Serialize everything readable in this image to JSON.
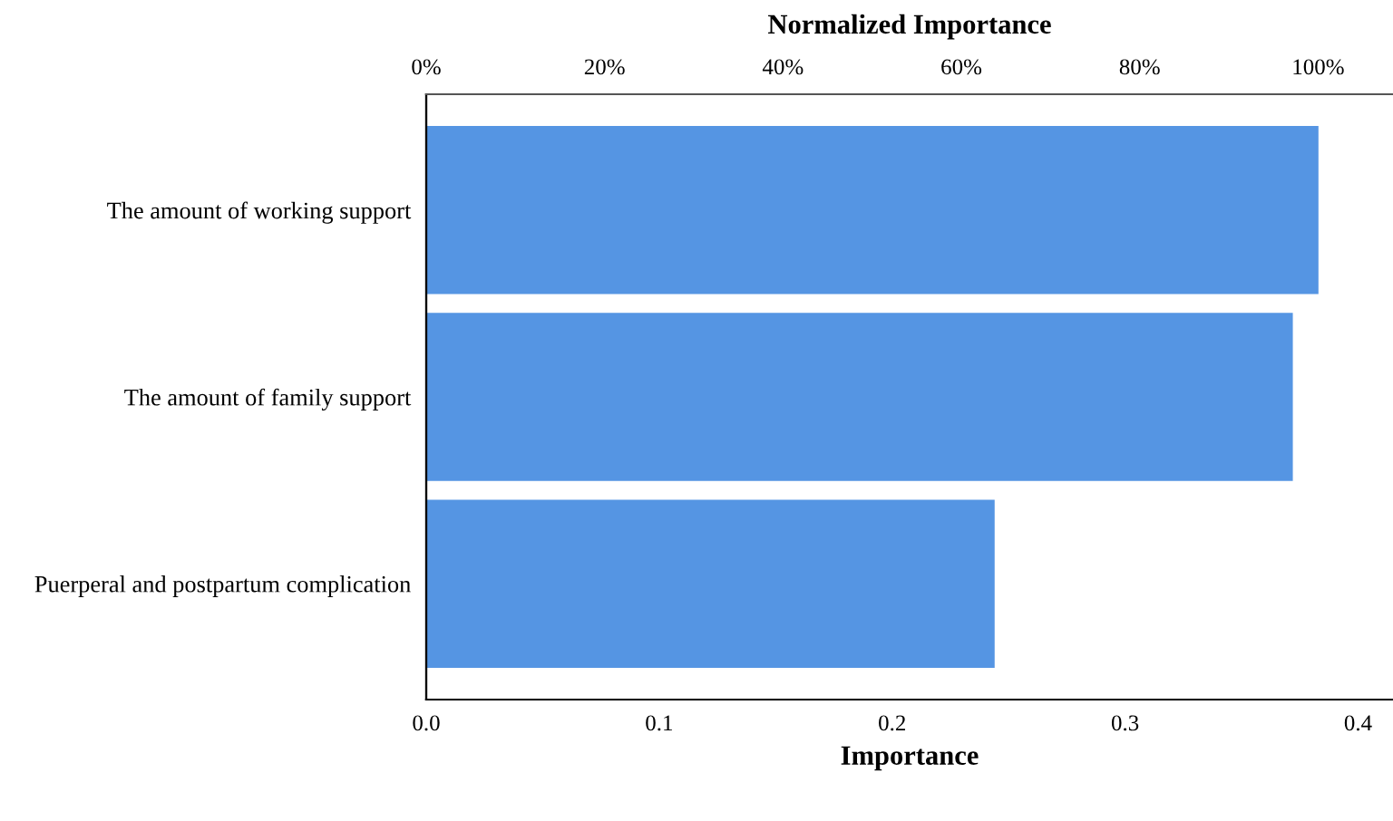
{
  "chart_data": {
    "type": "bar",
    "orientation": "horizontal",
    "xlabel": "Importance",
    "x2label": "Normalized Importance",
    "categories": [
      "The amount of working support",
      "The amount of family support",
      "Puerperal and postpartum complication"
    ],
    "values": [
      0.383,
      0.372,
      0.244
    ],
    "color": "#5595e3",
    "xlim": [
      0,
      0.415
    ],
    "xticks": [
      {
        "value": 0,
        "label": "0.0"
      },
      0.1,
      0.2,
      0.3,
      0.4
    ],
    "x2lim": [
      0,
      108.4
    ],
    "x2ticks": [
      {
        "value": 0,
        "label": "0%"
      },
      {
        "value": 20,
        "label": "20%"
      },
      {
        "value": 40,
        "label": "40%"
      },
      {
        "value": 60,
        "label": "60%"
      },
      {
        "value": 80,
        "label": "80%"
      },
      {
        "value": 100,
        "label": "100%"
      }
    ],
    "grid": false
  }
}
